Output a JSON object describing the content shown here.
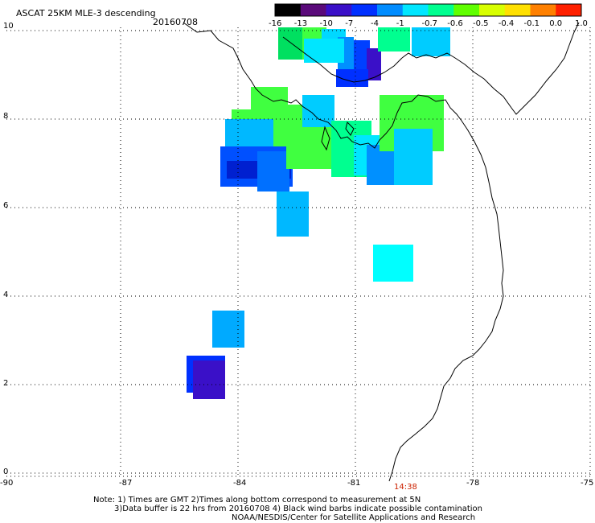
{
  "title": "ASCAT 25KM MLE-3 descending",
  "date": "20160708",
  "colorbar": {
    "labels": [
      "-16",
      "-13",
      "-10",
      "-7",
      "-4",
      "-1",
      "-0.7",
      "-0.6",
      "-0.5",
      "-0.4",
      "-0.1",
      "0.0",
      "1.0"
    ],
    "colors": [
      "#000000",
      "#5a0a7a",
      "#3a10c8",
      "#0030ff",
      "#008cff",
      "#00e6ff",
      "#00ff90",
      "#60ff00",
      "#d8ff00",
      "#ffe000",
      "#ff8000",
      "#ff2000"
    ]
  },
  "axes": {
    "x_ticks": [
      "-90",
      "-87",
      "-84",
      "-81",
      "-78",
      "-75"
    ],
    "y_ticks": [
      "10",
      "8",
      "6",
      "4",
      "2",
      "0"
    ]
  },
  "time_label": "14:38",
  "notes": [
    "Note: 1) Times are GMT 2)Times along bottom correspond to measurement at 5N",
    "3)Data buffer is 22 hrs from 20160708 4) Black wind barbs indicate possible contamination",
    "NOAA/NESDIS/Center for Satellite Applications and Research"
  ]
}
